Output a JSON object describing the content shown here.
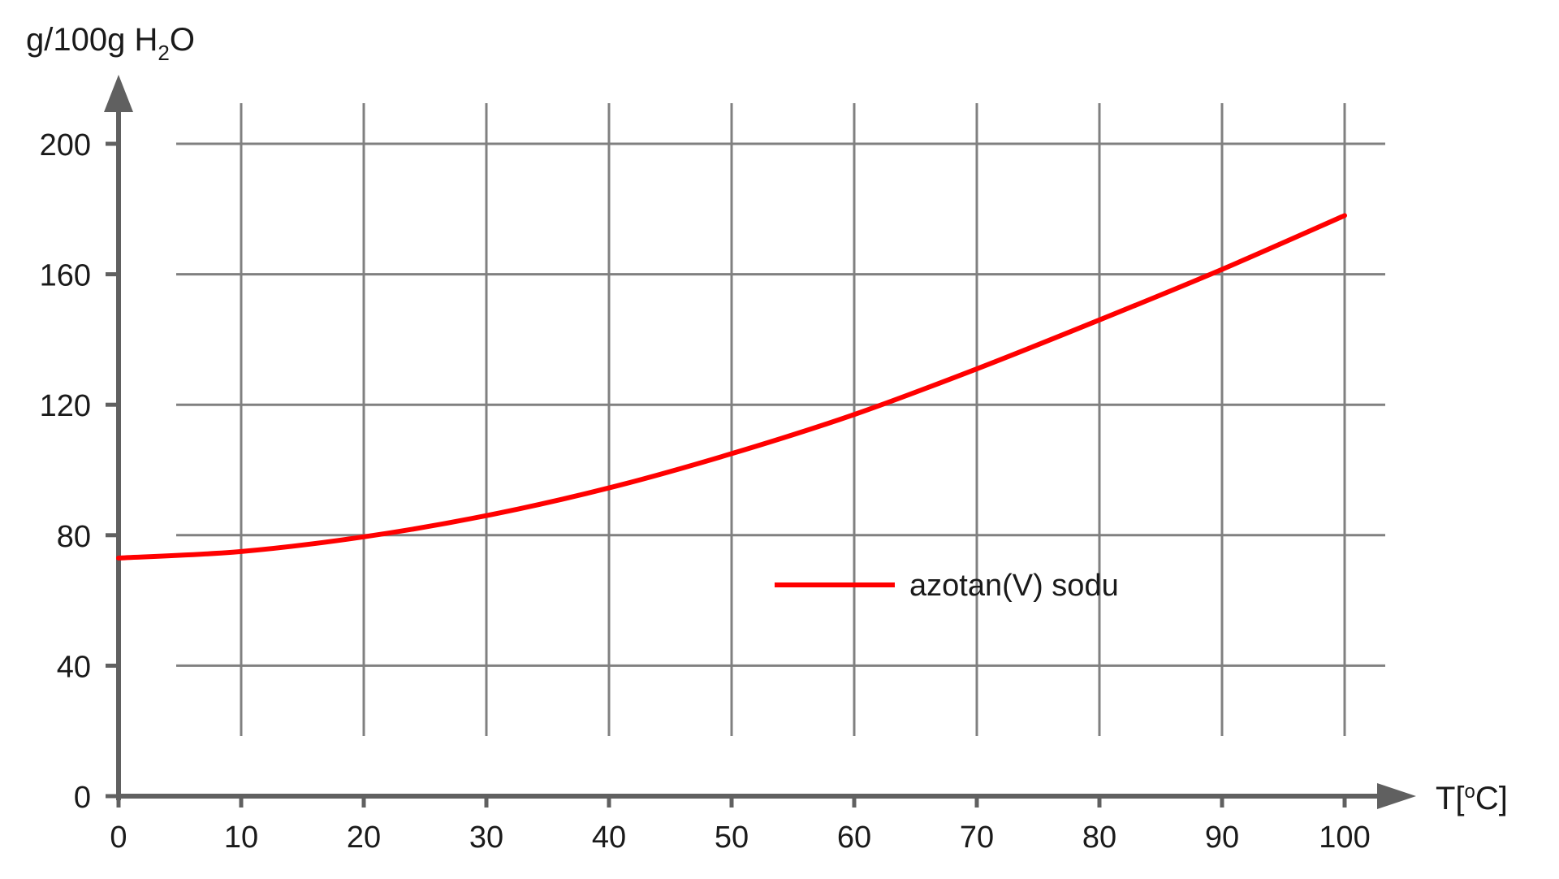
{
  "chart_data": {
    "type": "line",
    "title": "",
    "ylabel": {
      "prefix": "g/100g H",
      "sub": "2",
      "suffix": "O"
    },
    "xlabel": {
      "prefix": "T[",
      "sup": "o",
      "suffix": "C]"
    },
    "xlim": [
      0,
      100
    ],
    "ylim": [
      0,
      200
    ],
    "x_ticks": [
      "0",
      "10",
      "20",
      "30",
      "40",
      "50",
      "60",
      "70",
      "80",
      "90",
      "100"
    ],
    "y_ticks": [
      "0",
      "40",
      "80",
      "120",
      "160",
      "200"
    ],
    "grid": true,
    "legend_position": "center-right",
    "series": [
      {
        "name": "azotan(V) sodu",
        "color": "#ff0000",
        "x": [
          0,
          10,
          20,
          30,
          40,
          50,
          60,
          70,
          80,
          90,
          100
        ],
        "y": [
          73,
          75,
          79.5,
          86,
          94.5,
          105,
          117,
          131,
          146,
          161.5,
          178
        ]
      }
    ]
  }
}
